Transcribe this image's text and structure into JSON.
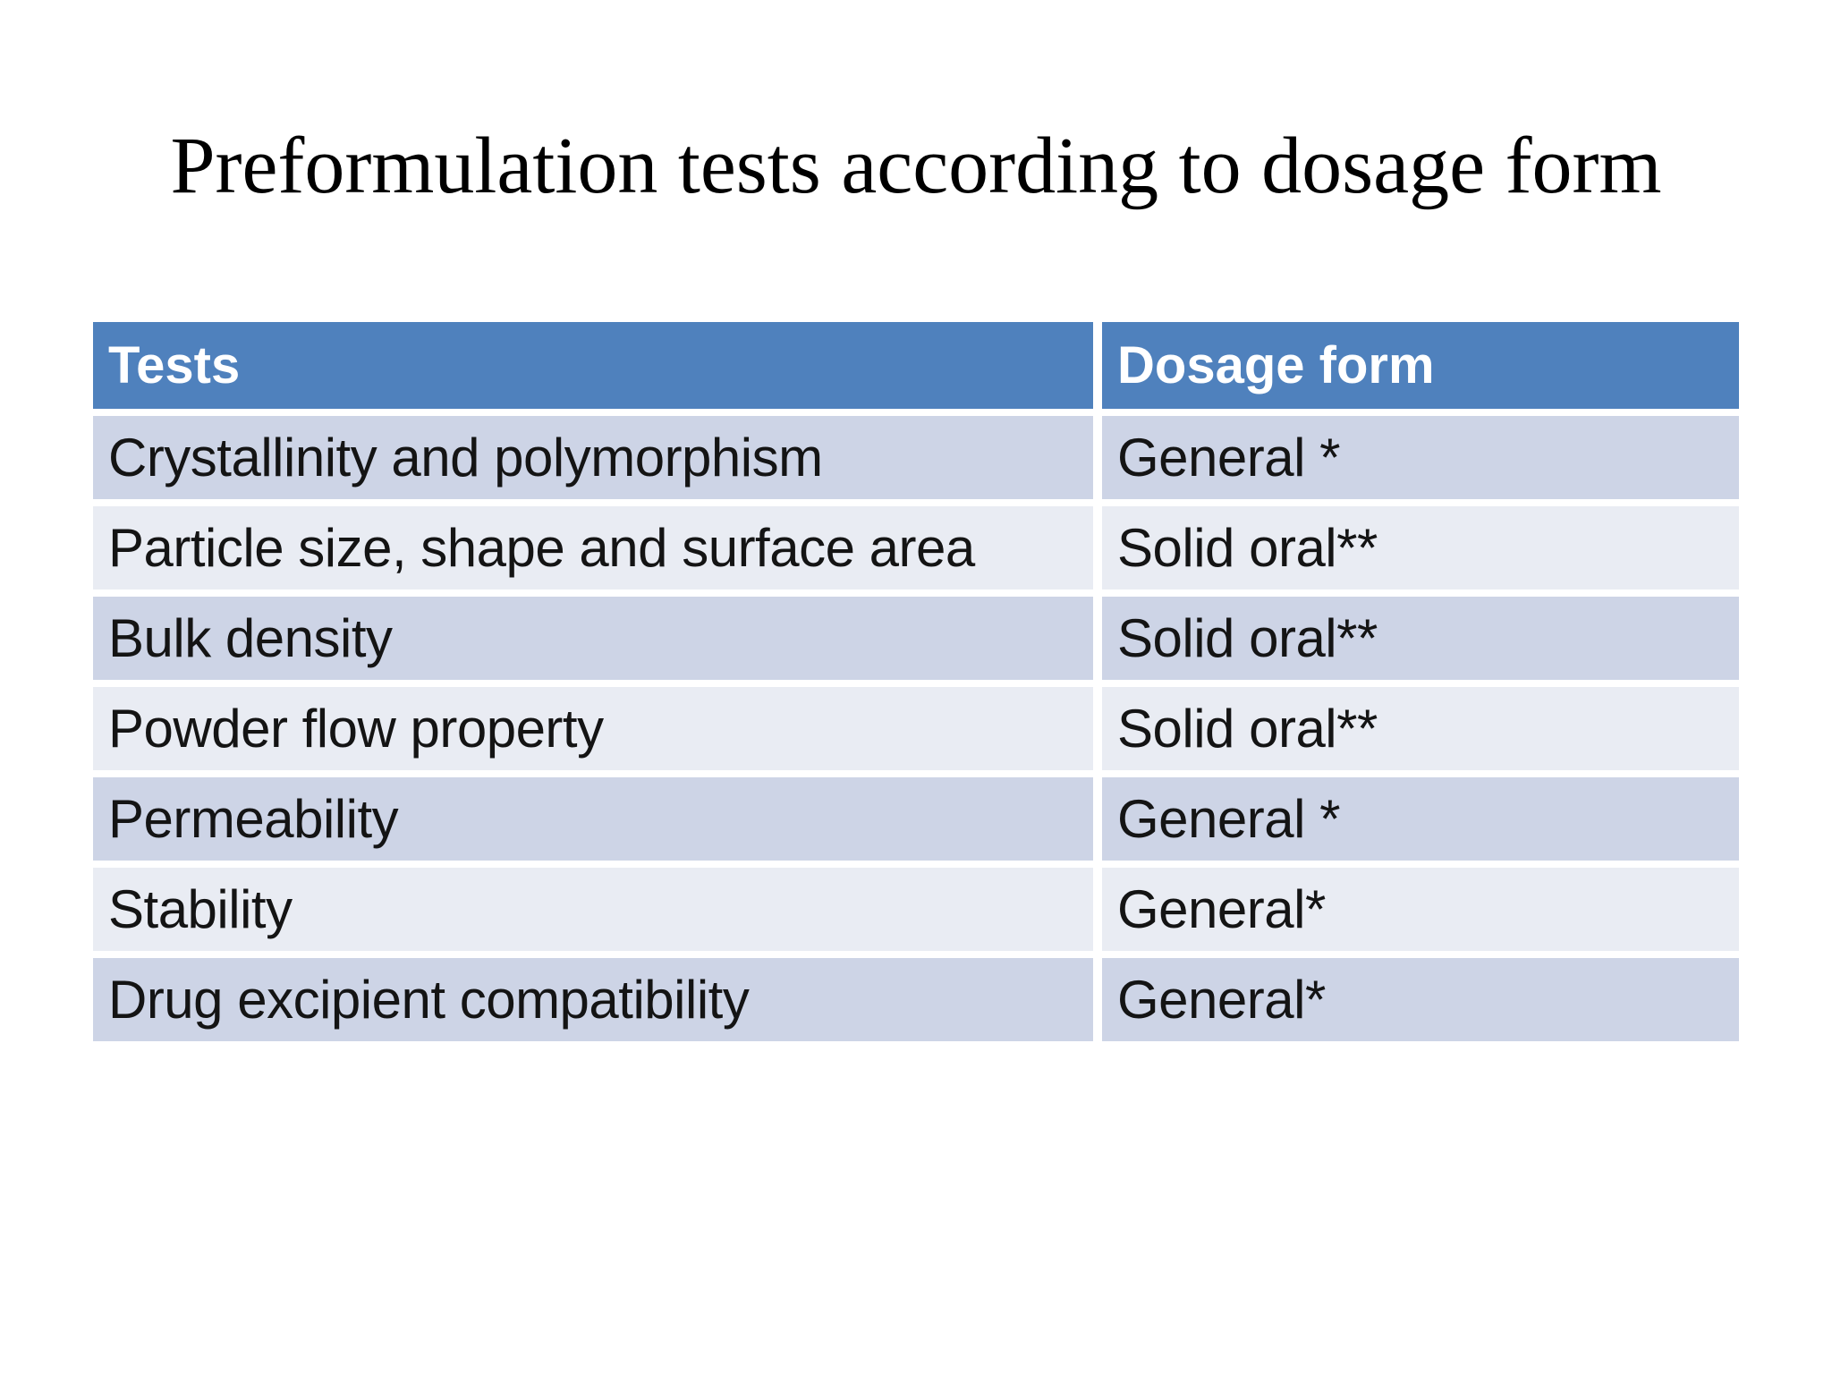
{
  "slide": {
    "title": "Preformulation tests according to dosage form"
  },
  "table": {
    "headers": {
      "tests": "Tests",
      "dosage_form": "Dosage form"
    },
    "rows": [
      {
        "test": "Crystallinity and polymorphism",
        "dosage_form": "General *"
      },
      {
        "test": "Particle size, shape and surface area",
        "dosage_form": "Solid oral**"
      },
      {
        "test": "Bulk density",
        "dosage_form": "Solid oral**"
      },
      {
        "test": "Powder flow property",
        "dosage_form": "Solid oral**"
      },
      {
        "test": "Permeability",
        "dosage_form": "General *"
      },
      {
        "test": "Stability",
        "dosage_form": "General*"
      },
      {
        "test": "Drug excipient compatibility",
        "dosage_form": "General*"
      }
    ],
    "colors": {
      "header_bg": "#4f81bd",
      "header_text": "#ffffff",
      "row_dark": "#cdd4e6",
      "row_light": "#e9ecf3",
      "body_text": "#141414",
      "title_text": "#000000",
      "page_bg": "#ffffff"
    }
  }
}
